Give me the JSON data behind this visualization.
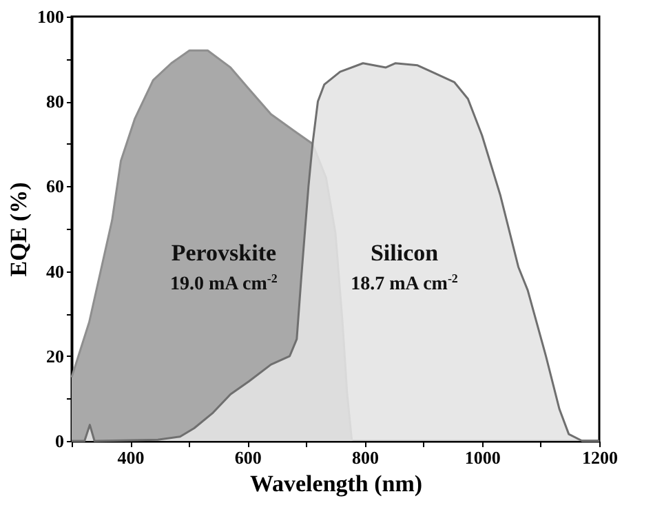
{
  "chart_data": {
    "type": "area",
    "xlabel": "Wavelength (nm)",
    "ylabel": "EQE (%)",
    "xlim": [
      300,
      1200
    ],
    "xticks": [
      {
        "value": 300,
        "label": null
      },
      400,
      {
        "value": 500,
        "label": null
      },
      600,
      {
        "value": 700,
        "label": null
      },
      800,
      {
        "value": 900,
        "label": null
      },
      1000,
      {
        "value": 1100,
        "label": null
      },
      1200
    ],
    "ylim": [
      0,
      100
    ],
    "yticks": [
      0,
      {
        "value": 10,
        "label": null
      },
      20,
      {
        "value": 30,
        "label": null
      },
      40,
      {
        "value": 50,
        "label": null
      },
      60,
      {
        "value": 70,
        "label": null
      },
      80,
      {
        "value": 90,
        "label": null
      },
      100
    ],
    "grid": false,
    "series": [
      {
        "name": "Perovskite",
        "color": "#a9a9a9",
        "x": [
          300,
          330,
          369,
          384,
          408,
          439,
          470,
          501,
          532,
          571,
          602,
          640,
          680,
          711,
          734,
          750,
          762,
          770,
          778
        ],
        "values": [
          15,
          28,
          52,
          66,
          76,
          85,
          89,
          92,
          92,
          88,
          83,
          77,
          73,
          70,
          62,
          49,
          28,
          11,
          0
        ]
      },
      {
        "name": "Silicon",
        "color": "#e4e4e4",
        "x": [
          300,
          322,
          331,
          339,
          447,
          485,
          509,
          540,
          571,
          602,
          640,
          672,
          684,
          692,
          704,
          711,
          720,
          731,
          758,
          797,
          836,
          852,
          890,
          914,
          953,
          976,
          1000,
          1031,
          1062,
          1078,
          1109,
          1132,
          1148,
          1171,
          1200
        ],
        "values": [
          0,
          0,
          3.8,
          0,
          0.3,
          1,
          3,
          6.5,
          11,
          14,
          18,
          20,
          24,
          39,
          60,
          70,
          80,
          84,
          87,
          89,
          88,
          89,
          88.5,
          87,
          84.5,
          80.6,
          72,
          58,
          41,
          35.5,
          20,
          7.5,
          1.6,
          0,
          0
        ]
      }
    ],
    "annotations": [
      "19.0 mA cm$^{-2}$",
      "18.7 mA cm$^{-2}$"
    ]
  }
}
